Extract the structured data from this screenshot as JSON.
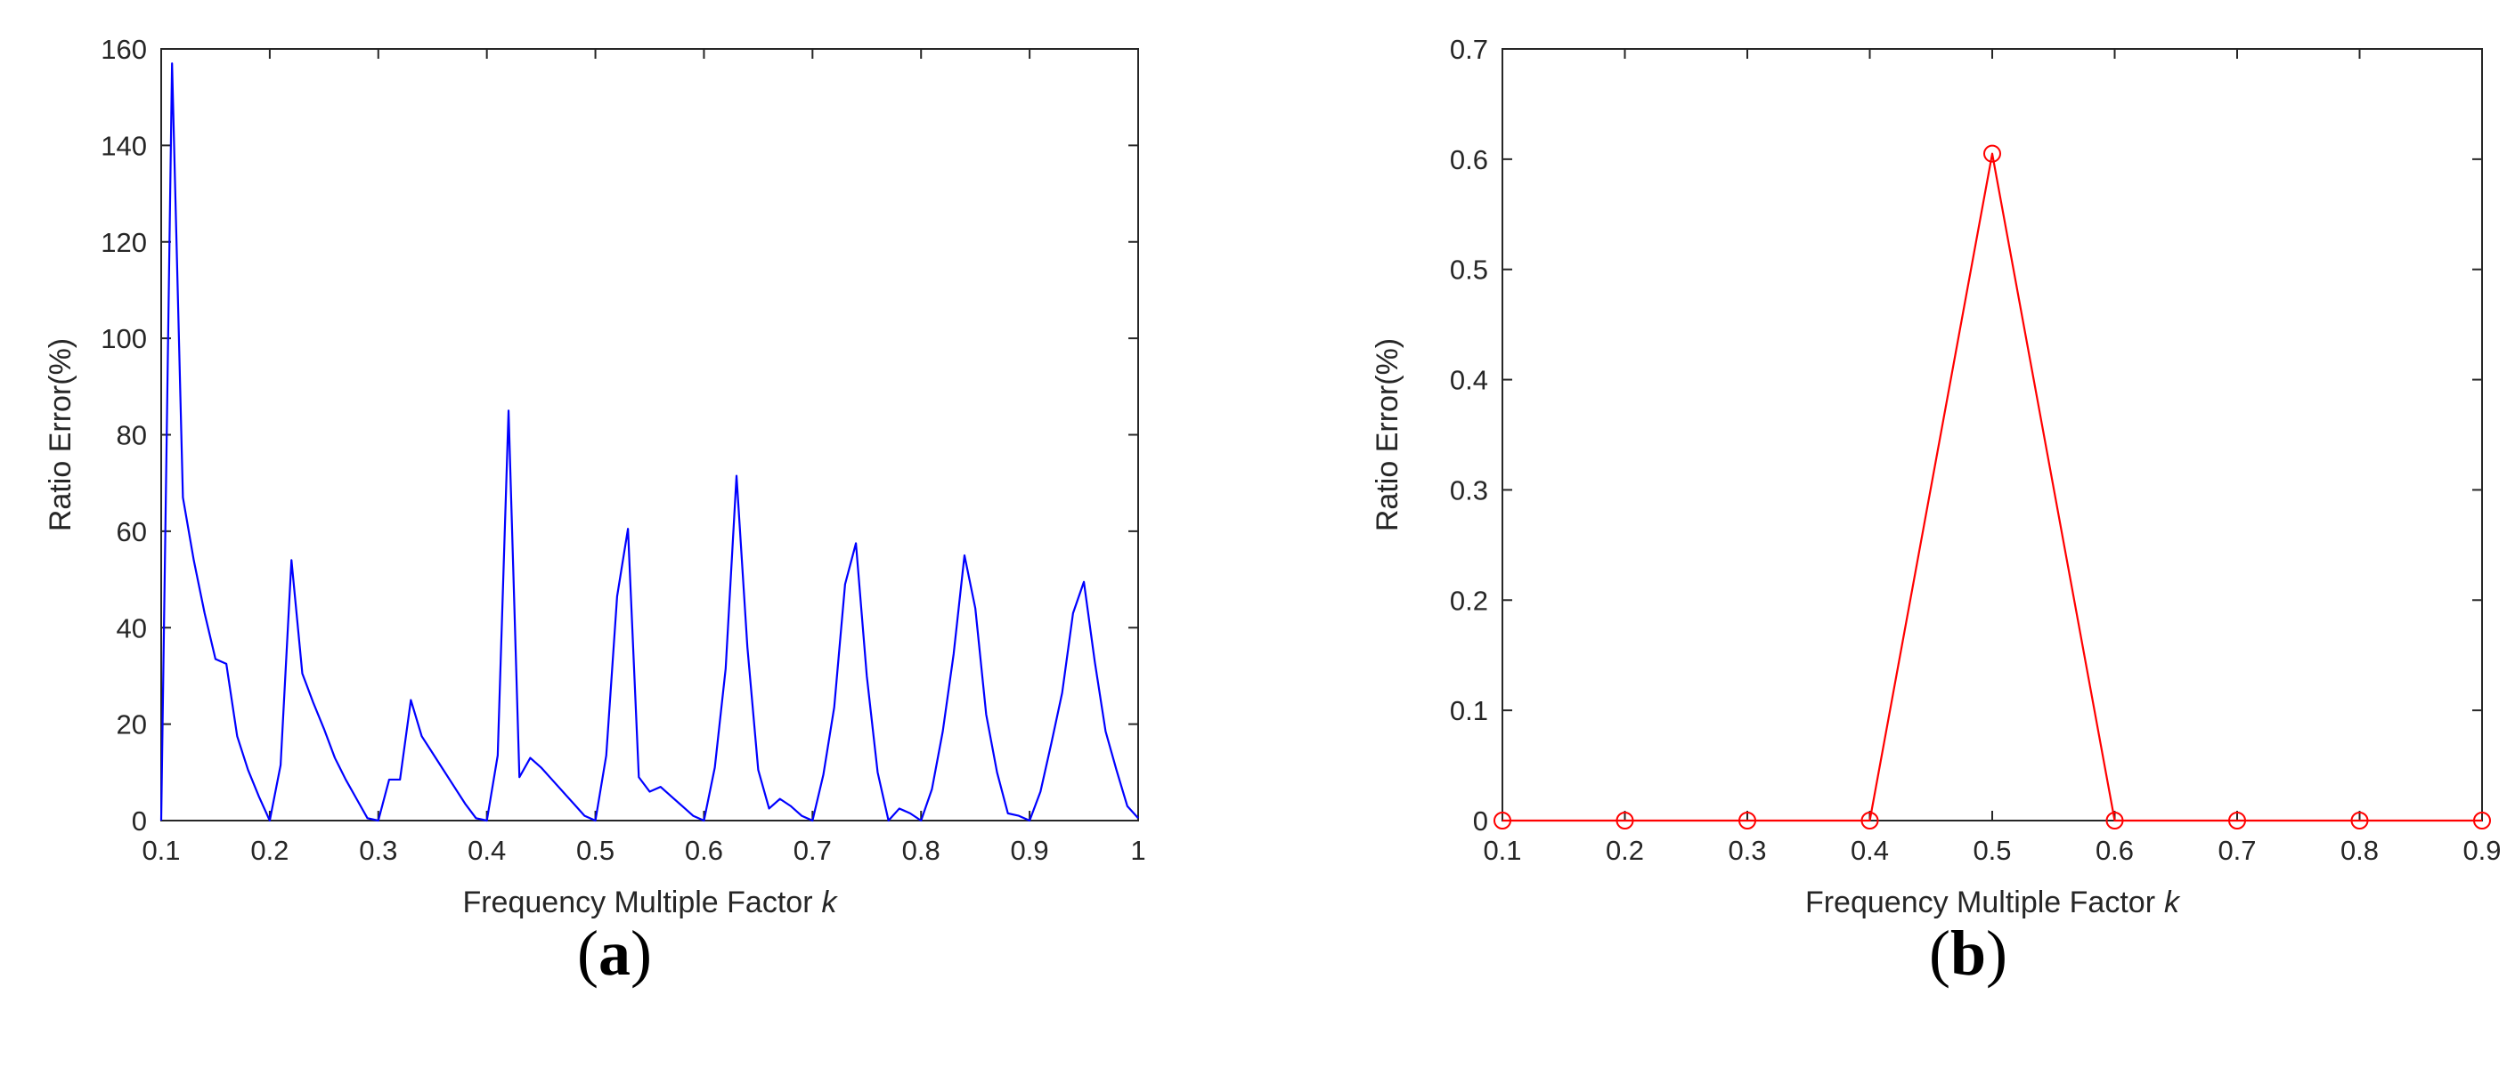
{
  "chart_data": [
    {
      "type": "line",
      "panel_label_letter": "a",
      "xlabel": "Frequency Multiple Factor",
      "xlabel_var": "k",
      "ylabel": "Ratio Error(%)",
      "xlim": [
        0.1,
        1.0
      ],
      "ylim": [
        0,
        160
      ],
      "xticks": [
        "0.1",
        "0.2",
        "0.3",
        "0.4",
        "0.5",
        "0.6",
        "0.7",
        "0.8",
        "0.9",
        "1"
      ],
      "yticks": [
        "0",
        "20",
        "40",
        "60",
        "80",
        "100",
        "120",
        "140",
        "160"
      ],
      "xtick_values": [
        0.1,
        0.2,
        0.3,
        0.4,
        0.5,
        0.6,
        0.7,
        0.8,
        0.9,
        1.0
      ],
      "ytick_values": [
        0,
        20,
        40,
        60,
        80,
        100,
        120,
        140,
        160
      ],
      "grid": false,
      "series": [
        {
          "color": "#0000ff",
          "marker": "none",
          "x": [
            0.1,
            0.11,
            0.12,
            0.13,
            0.14,
            0.15,
            0.16,
            0.17,
            0.18,
            0.19,
            0.2,
            0.21,
            0.22,
            0.23,
            0.24,
            0.25,
            0.26,
            0.27,
            0.28,
            0.29,
            0.3,
            0.31,
            0.32,
            0.33,
            0.34,
            0.35,
            0.36,
            0.37,
            0.38,
            0.39,
            0.4,
            0.41,
            0.42,
            0.43,
            0.44,
            0.45,
            0.46,
            0.47,
            0.48,
            0.49,
            0.5,
            0.51,
            0.52,
            0.53,
            0.54,
            0.55,
            0.56,
            0.57,
            0.58,
            0.59,
            0.6,
            0.61,
            0.62,
            0.63,
            0.64,
            0.65,
            0.66,
            0.67,
            0.68,
            0.69,
            0.7,
            0.71,
            0.72,
            0.73,
            0.74,
            0.75,
            0.76,
            0.77,
            0.78,
            0.79,
            0.8,
            0.81,
            0.82,
            0.83,
            0.84,
            0.85,
            0.86,
            0.87,
            0.88,
            0.89,
            0.9,
            0.91,
            0.92,
            0.93,
            0.94,
            0.95,
            0.96,
            0.97,
            0.98,
            0.99,
            1.0
          ],
          "y": [
            0,
            157,
            67,
            54,
            43,
            33.5,
            32.5,
            17.5,
            10.5,
            5,
            0,
            11.5,
            54,
            30.5,
            24.5,
            19,
            13,
            8.5,
            4.5,
            0.5,
            0,
            8.5,
            8.5,
            25,
            17.5,
            14,
            10.5,
            7,
            3.5,
            0.5,
            0,
            13.5,
            85,
            9,
            13,
            11,
            8.5,
            6,
            3.5,
            1,
            0,
            13.5,
            46.5,
            60.5,
            9,
            6,
            7,
            5,
            3,
            1,
            0,
            11,
            31.5,
            71.5,
            36,
            10.5,
            2.5,
            4.5,
            3,
            1,
            0,
            9.5,
            23.5,
            49,
            57.5,
            30,
            10,
            0,
            2.5,
            1.5,
            0,
            6.5,
            18.5,
            34.5,
            55,
            44,
            22,
            10,
            1.5,
            1,
            0,
            6,
            16,
            26.5,
            43,
            49.5,
            33,
            18.5,
            10.5,
            3,
            0.5
          ]
        }
      ]
    },
    {
      "type": "line",
      "panel_label_letter": "b",
      "xlabel": "Frequency Multiple Factor",
      "xlabel_var": "k",
      "ylabel": "Ratio Error(%)",
      "xlim": [
        0.1,
        0.9
      ],
      "ylim": [
        0,
        0.7
      ],
      "xticks": [
        "0.1",
        "0.2",
        "0.3",
        "0.4",
        "0.5",
        "0.6",
        "0.7",
        "0.8",
        "0.9"
      ],
      "yticks": [
        "0",
        "0.1",
        "0.2",
        "0.3",
        "0.4",
        "0.5",
        "0.6",
        "0.7"
      ],
      "xtick_values": [
        0.1,
        0.2,
        0.3,
        0.4,
        0.5,
        0.6,
        0.7,
        0.8,
        0.9
      ],
      "ytick_values": [
        0,
        0.1,
        0.2,
        0.3,
        0.4,
        0.5,
        0.6,
        0.7
      ],
      "grid": false,
      "series": [
        {
          "color": "#ff0000",
          "marker": "circle",
          "x": [
            0.1,
            0.2,
            0.3,
            0.4,
            0.5,
            0.6,
            0.7,
            0.8,
            0.9
          ],
          "y": [
            0,
            0,
            0,
            0,
            0.605,
            0,
            0,
            0,
            0
          ]
        }
      ]
    }
  ]
}
